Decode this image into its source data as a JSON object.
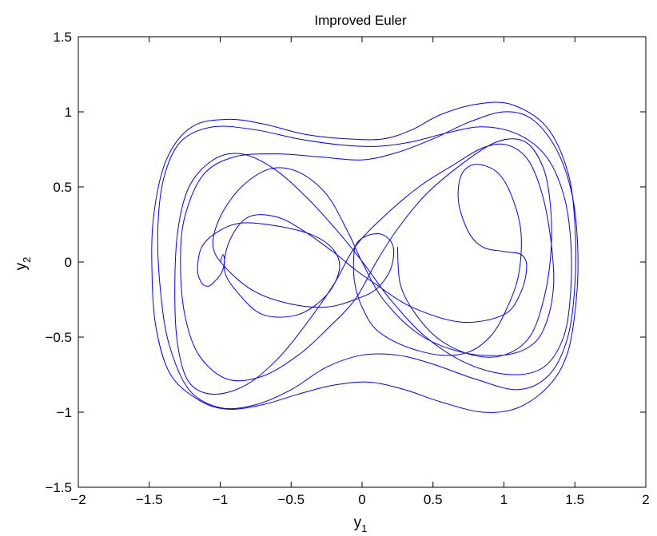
{
  "chart_data": {
    "type": "line",
    "title": "Improved Euler",
    "xlabel": {
      "base": "y",
      "sub": "1"
    },
    "ylabel": {
      "base": "y",
      "sub": "2"
    },
    "xlim": [
      -2,
      2
    ],
    "ylim": [
      -1.5,
      1.5
    ],
    "xticks": [
      -2,
      -1.5,
      -1,
      -0.5,
      0,
      0.5,
      1,
      1.5,
      2
    ],
    "xtick_labels": [
      "−2",
      "−1.5",
      "−1",
      "−0.5",
      "0",
      "0.5",
      "1",
      "1.5",
      "2"
    ],
    "yticks": [
      -1.5,
      -1,
      -0.5,
      0,
      0.5,
      1,
      1.5
    ],
    "ytick_labels": [
      "−1.5",
      "−1",
      "−0.5",
      "0",
      "0.5",
      "1",
      "1.5"
    ],
    "grid": false,
    "series": [
      {
        "color": "#0000ff",
        "points": [
          [
            -1.0,
            0.0
          ],
          [
            -0.98,
            0.05
          ],
          [
            -0.97,
            0.0
          ],
          [
            -0.99,
            -0.07
          ],
          [
            -1.03,
            -0.12
          ],
          [
            -1.08,
            -0.16
          ],
          [
            -1.13,
            -0.14
          ],
          [
            -1.16,
            -0.05
          ],
          [
            -1.13,
            0.1
          ],
          [
            -1.02,
            0.2
          ],
          [
            -0.85,
            0.26
          ],
          [
            -0.6,
            0.24
          ],
          [
            -0.35,
            0.18
          ],
          [
            -0.2,
            0.08
          ],
          [
            -0.16,
            -0.05
          ],
          [
            -0.25,
            -0.22
          ],
          [
            -0.45,
            -0.35
          ],
          [
            -0.7,
            -0.35
          ],
          [
            -0.88,
            -0.2
          ],
          [
            -0.97,
            -0.05
          ],
          [
            -0.93,
            0.15
          ],
          [
            -0.8,
            0.3
          ],
          [
            -0.6,
            0.3
          ],
          [
            -0.4,
            0.2
          ],
          [
            -0.18,
            0.05
          ],
          [
            -0.05,
            -0.05
          ],
          [
            0.1,
            -0.15
          ],
          [
            0.35,
            -0.3
          ],
          [
            0.7,
            -0.4
          ],
          [
            1.0,
            -0.35
          ],
          [
            1.12,
            -0.2
          ],
          [
            1.16,
            -0.03
          ],
          [
            1.12,
            0.05
          ],
          [
            1.0,
            0.07
          ],
          [
            0.85,
            0.1
          ],
          [
            0.75,
            0.2
          ],
          [
            0.68,
            0.4
          ],
          [
            0.7,
            0.58
          ],
          [
            0.8,
            0.65
          ],
          [
            0.95,
            0.6
          ],
          [
            1.05,
            0.45
          ],
          [
            1.12,
            0.2
          ],
          [
            1.1,
            -0.1
          ],
          [
            1.0,
            -0.35
          ],
          [
            0.9,
            -0.5
          ],
          [
            0.75,
            -0.6
          ],
          [
            0.55,
            -0.62
          ],
          [
            0.3,
            -0.56
          ],
          [
            0.1,
            -0.45
          ],
          [
            0.0,
            -0.3
          ],
          [
            -0.05,
            -0.15
          ],
          [
            -0.06,
            0.0
          ],
          [
            -0.04,
            0.12
          ],
          [
            0.05,
            0.18
          ],
          [
            0.15,
            0.18
          ],
          [
            0.22,
            0.1
          ],
          [
            0.2,
            -0.05
          ],
          [
            0.1,
            -0.18
          ],
          [
            -0.05,
            -0.25
          ],
          [
            -0.25,
            -0.3
          ],
          [
            -0.5,
            -0.28
          ],
          [
            -0.75,
            -0.2
          ],
          [
            -0.95,
            -0.05
          ],
          [
            -1.05,
            0.1
          ],
          [
            -1.0,
            0.3
          ],
          [
            -0.85,
            0.5
          ],
          [
            -0.65,
            0.62
          ],
          [
            -0.45,
            0.6
          ],
          [
            -0.25,
            0.45
          ],
          [
            -0.1,
            0.2
          ],
          [
            0.0,
            0.0
          ],
          [
            0.15,
            -0.25
          ],
          [
            0.4,
            -0.48
          ],
          [
            0.7,
            -0.6
          ],
          [
            1.0,
            -0.62
          ],
          [
            1.2,
            -0.55
          ],
          [
            1.3,
            -0.4
          ],
          [
            1.35,
            -0.15
          ],
          [
            1.33,
            0.15
          ],
          [
            1.27,
            0.45
          ],
          [
            1.17,
            0.68
          ],
          [
            1.02,
            0.78
          ],
          [
            0.85,
            0.76
          ],
          [
            0.65,
            0.65
          ],
          [
            0.4,
            0.5
          ],
          [
            0.15,
            0.3
          ],
          [
            -0.05,
            0.1
          ],
          [
            -0.2,
            -0.15
          ],
          [
            -0.4,
            -0.42
          ],
          [
            -0.6,
            -0.65
          ],
          [
            -0.82,
            -0.82
          ],
          [
            -1.05,
            -0.88
          ],
          [
            -1.22,
            -0.8
          ],
          [
            -1.3,
            -0.55
          ],
          [
            -1.32,
            -0.2
          ],
          [
            -1.3,
            0.2
          ],
          [
            -1.22,
            0.5
          ],
          [
            -1.05,
            0.68
          ],
          [
            -0.85,
            0.72
          ],
          [
            -0.62,
            0.62
          ],
          [
            -0.38,
            0.42
          ],
          [
            -0.15,
            0.18
          ],
          [
            0.02,
            -0.02
          ],
          [
            0.2,
            -0.25
          ],
          [
            0.45,
            -0.5
          ],
          [
            0.75,
            -0.68
          ],
          [
            1.05,
            -0.75
          ],
          [
            1.28,
            -0.7
          ],
          [
            1.42,
            -0.5
          ],
          [
            1.47,
            -0.2
          ],
          [
            1.47,
            0.15
          ],
          [
            1.42,
            0.45
          ],
          [
            1.3,
            0.7
          ],
          [
            1.1,
            0.85
          ],
          [
            0.85,
            0.9
          ],
          [
            0.6,
            0.86
          ],
          [
            0.35,
            0.8
          ],
          [
            0.1,
            0.77
          ],
          [
            -0.15,
            0.78
          ],
          [
            -0.45,
            0.82
          ],
          [
            -0.75,
            0.88
          ],
          [
            -1.05,
            0.9
          ],
          [
            -1.28,
            0.8
          ],
          [
            -1.4,
            0.55
          ],
          [
            -1.44,
            0.2
          ],
          [
            -1.42,
            -0.2
          ],
          [
            -1.36,
            -0.55
          ],
          [
            -1.22,
            -0.85
          ],
          [
            -1.0,
            -0.97
          ],
          [
            -0.75,
            -0.95
          ],
          [
            -0.5,
            -0.85
          ],
          [
            -0.25,
            -0.7
          ],
          [
            0.0,
            -0.62
          ],
          [
            0.25,
            -0.62
          ],
          [
            0.5,
            -0.68
          ],
          [
            0.8,
            -0.78
          ],
          [
            1.1,
            -0.85
          ],
          [
            1.32,
            -0.75
          ],
          [
            1.45,
            -0.5
          ],
          [
            1.5,
            -0.15
          ],
          [
            1.5,
            0.25
          ],
          [
            1.45,
            0.6
          ],
          [
            1.3,
            0.9
          ],
          [
            1.05,
            1.05
          ],
          [
            0.8,
            1.05
          ],
          [
            0.55,
            0.98
          ],
          [
            0.35,
            0.88
          ],
          [
            0.15,
            0.82
          ],
          [
            -0.1,
            0.82
          ],
          [
            -0.4,
            0.85
          ],
          [
            -0.7,
            0.92
          ],
          [
            -0.95,
            0.95
          ],
          [
            -1.2,
            0.9
          ],
          [
            -1.38,
            0.68
          ],
          [
            -1.47,
            0.3
          ],
          [
            -1.48,
            -0.1
          ],
          [
            -1.45,
            -0.45
          ],
          [
            -1.35,
            -0.75
          ],
          [
            -1.15,
            -0.92
          ],
          [
            -0.95,
            -0.98
          ],
          [
            -0.7,
            -0.95
          ],
          [
            -0.45,
            -0.88
          ],
          [
            -0.2,
            -0.82
          ],
          [
            0.05,
            -0.8
          ],
          [
            0.3,
            -0.85
          ],
          [
            0.55,
            -0.93
          ],
          [
            0.85,
            -1.0
          ],
          [
            1.1,
            -0.97
          ],
          [
            1.32,
            -0.82
          ],
          [
            1.45,
            -0.6
          ],
          [
            1.51,
            -0.25
          ],
          [
            1.52,
            0.1
          ],
          [
            1.48,
            0.45
          ],
          [
            1.37,
            0.75
          ],
          [
            1.2,
            0.95
          ],
          [
            1.0,
            1.0
          ],
          [
            0.75,
            0.93
          ],
          [
            0.5,
            0.82
          ],
          [
            0.25,
            0.73
          ],
          [
            0.0,
            0.68
          ],
          [
            -0.3,
            0.7
          ],
          [
            -0.6,
            0.72
          ],
          [
            -0.9,
            0.7
          ],
          [
            -1.12,
            0.58
          ],
          [
            -1.25,
            0.3
          ],
          [
            -1.28,
            0.0
          ],
          [
            -1.25,
            -0.35
          ],
          [
            -1.15,
            -0.62
          ],
          [
            -0.95,
            -0.78
          ],
          [
            -0.7,
            -0.76
          ],
          [
            -0.45,
            -0.62
          ],
          [
            -0.25,
            -0.45
          ],
          [
            -0.05,
            -0.25
          ],
          [
            0.1,
            0.0
          ],
          [
            0.25,
            0.22
          ],
          [
            0.45,
            0.45
          ],
          [
            0.7,
            0.65
          ],
          [
            0.95,
            0.8
          ],
          [
            1.15,
            0.8
          ],
          [
            1.28,
            0.62
          ],
          [
            1.33,
            0.35
          ],
          [
            1.33,
            0.05
          ],
          [
            1.28,
            -0.25
          ],
          [
            1.18,
            -0.5
          ],
          [
            1.0,
            -0.62
          ],
          [
            0.78,
            -0.62
          ],
          [
            0.55,
            -0.52
          ],
          [
            0.38,
            -0.35
          ],
          [
            0.27,
            -0.15
          ],
          [
            0.25,
            0.1
          ]
        ]
      }
    ]
  }
}
